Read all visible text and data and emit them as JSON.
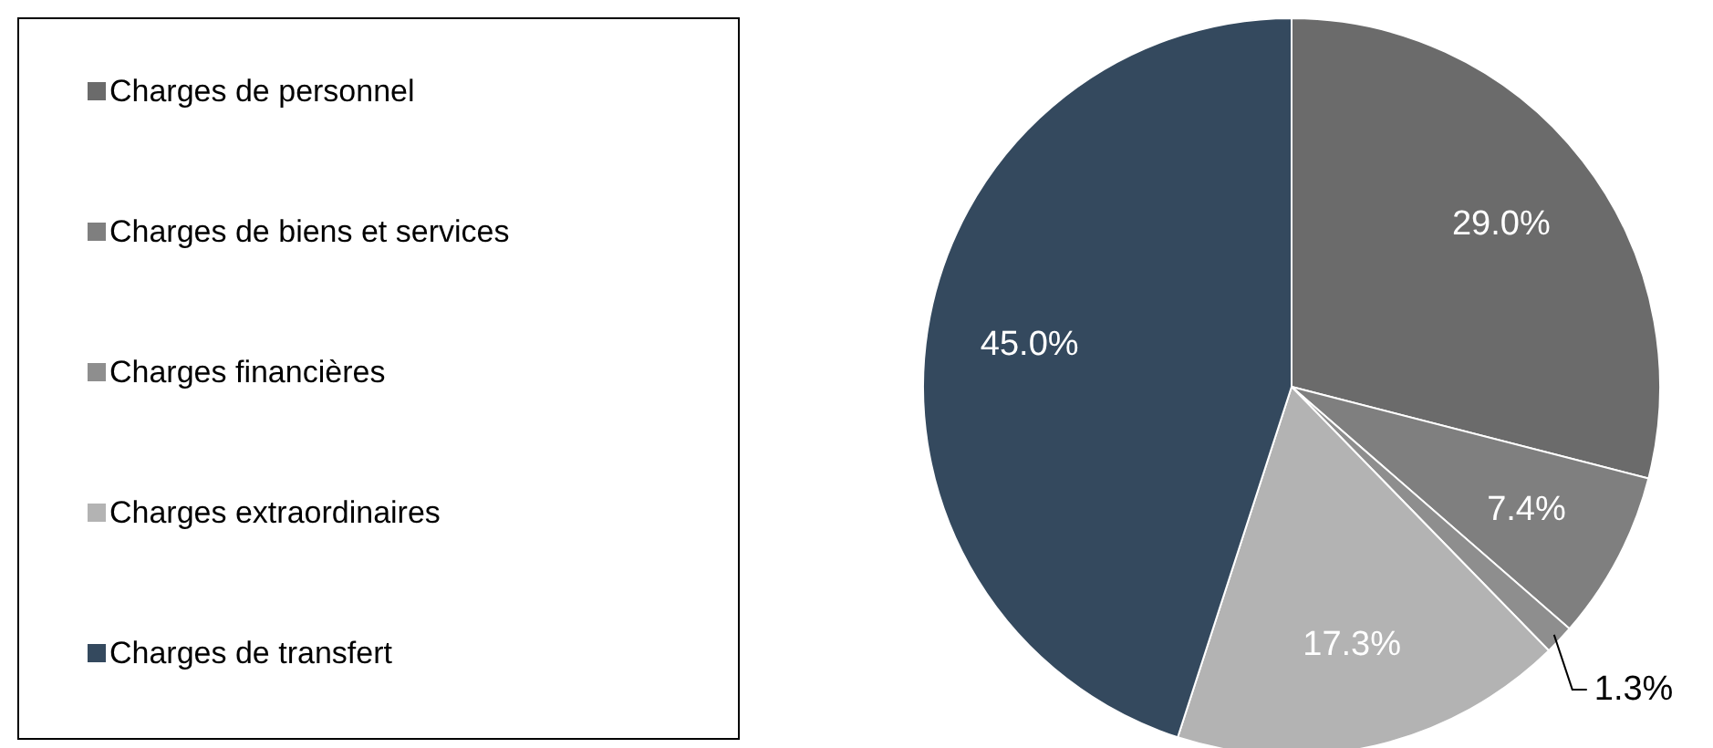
{
  "chart_data": {
    "type": "pie",
    "categories": [
      "Charges de personnel",
      "Charges de biens et services",
      "Charges financières",
      "Charges extraordinaires",
      "Charges de transfert"
    ],
    "values": [
      29.0,
      7.4,
      1.3,
      17.3,
      45.0
    ],
    "colors": [
      "#6b6b6b",
      "#7f7f7f",
      "#8e8e8e",
      "#b3b3b3",
      "#34495e"
    ],
    "value_labels": [
      "29.0%",
      "7.4%",
      "1.3%",
      "17.3%",
      "45.0%"
    ],
    "legend": "left"
  }
}
